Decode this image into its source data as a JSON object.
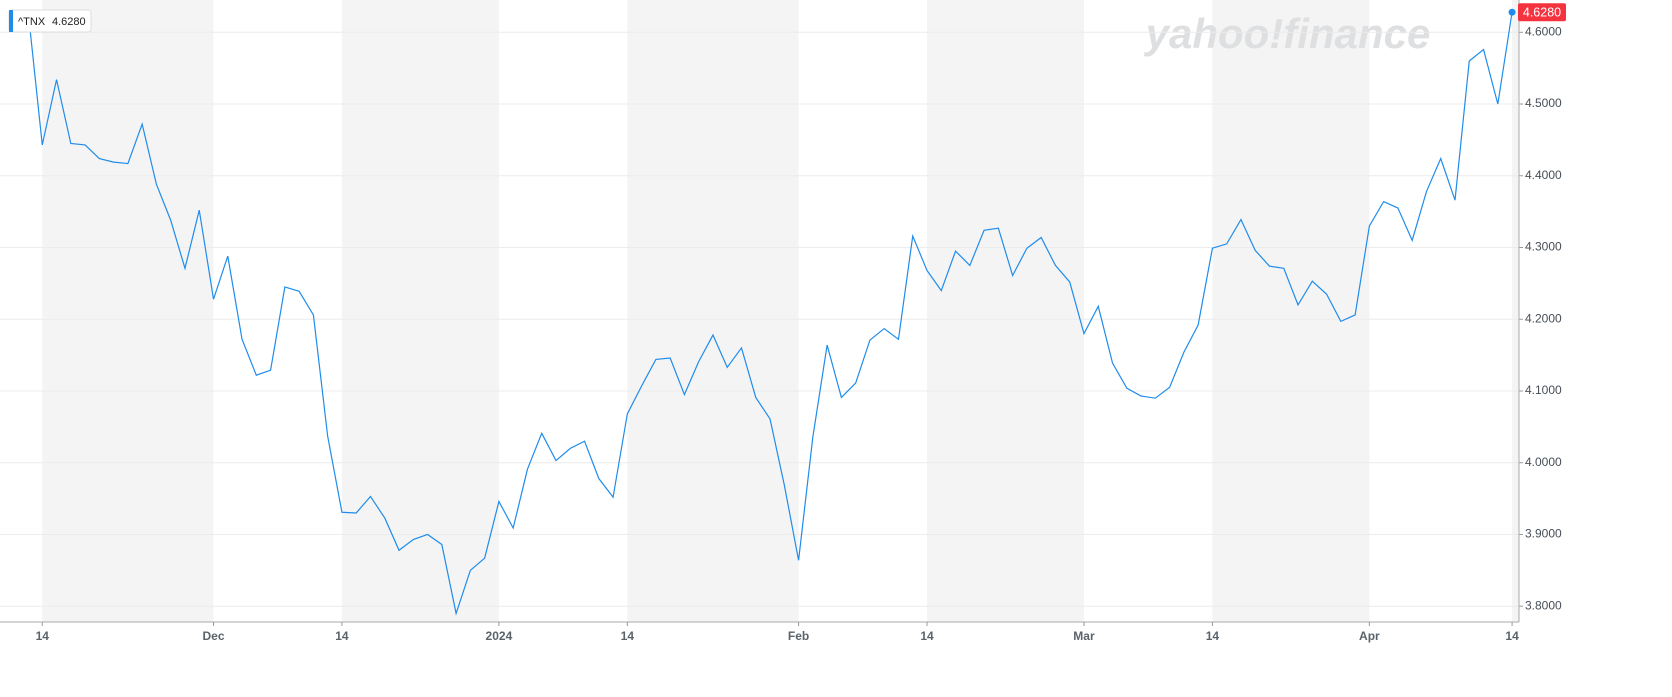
{
  "chart_data": {
    "type": "line",
    "watermark": "yahoo!finance",
    "categories": [
      null,
      "14",
      null,
      null,
      null,
      null,
      null,
      null,
      null,
      null,
      null,
      null,
      null,
      "Dec",
      null,
      null,
      null,
      null,
      null,
      null,
      null,
      null,
      "14",
      null,
      null,
      null,
      null,
      null,
      null,
      null,
      null,
      null,
      null,
      "2024",
      null,
      null,
      null,
      null,
      null,
      null,
      null,
      null,
      "14",
      null,
      null,
      null,
      null,
      null,
      null,
      null,
      null,
      null,
      null,
      null,
      "Feb",
      null,
      null,
      null,
      null,
      null,
      null,
      null,
      null,
      "14",
      null,
      null,
      null,
      null,
      null,
      null,
      null,
      null,
      null,
      null,
      "Mar",
      null,
      null,
      null,
      null,
      null,
      null,
      null,
      null,
      "14",
      null,
      null,
      null,
      null,
      null,
      null,
      null,
      null,
      null,
      null,
      "Apr",
      null,
      null,
      null,
      null,
      null,
      null,
      null,
      null,
      null,
      "14"
    ],
    "series": [
      {
        "name": "^TNX",
        "color": "#1f8ceb",
        "values": [
          4.631,
          4.443,
          4.534,
          4.445,
          4.443,
          4.424,
          4.419,
          4.417,
          4.472,
          4.388,
          4.338,
          4.271,
          4.352,
          4.228,
          4.288,
          4.172,
          4.122,
          4.129,
          4.245,
          4.239,
          4.206,
          4.037,
          3.931,
          3.93,
          3.953,
          3.923,
          3.878,
          3.893,
          3.9,
          3.886,
          3.79,
          3.85,
          3.867,
          3.946,
          3.909,
          3.991,
          4.041,
          4.003,
          4.02,
          4.03,
          3.978,
          3.952,
          4.068,
          4.107,
          4.144,
          4.146,
          4.095,
          4.141,
          4.178,
          4.133,
          4.16,
          4.091,
          4.061,
          3.969,
          3.864,
          4.036,
          4.164,
          4.091,
          4.111,
          4.171,
          4.187,
          4.172,
          4.316,
          4.268,
          4.24,
          4.295,
          4.275,
          4.324,
          4.327,
          4.261,
          4.299,
          4.314,
          4.275,
          4.252,
          4.18,
          4.218,
          4.139,
          4.104,
          4.093,
          4.09,
          4.105,
          4.154,
          4.192,
          4.299,
          4.305,
          4.339,
          4.296,
          4.274,
          4.271,
          4.22,
          4.253,
          4.235,
          4.197,
          4.206,
          4.33,
          4.364,
          4.355,
          4.31,
          4.378,
          4.424,
          4.366,
          4.56,
          4.576,
          4.5,
          4.628
        ]
      }
    ],
    "last_price": {
      "value": 4.628,
      "label": "4.6280",
      "color": "#f5333f"
    },
    "ylim": [
      3.778,
      4.645
    ],
    "yticks": [
      {
        "value": 3.8,
        "label": "3.8000"
      },
      {
        "value": 3.9,
        "label": "3.9000"
      },
      {
        "value": 4.0,
        "label": "4.0000"
      },
      {
        "value": 4.1,
        "label": "4.1000"
      },
      {
        "value": 4.2,
        "label": "4.2000"
      },
      {
        "value": 4.3,
        "label": "4.3000"
      },
      {
        "value": 4.4,
        "label": "4.4000"
      },
      {
        "value": 4.5,
        "label": "4.5000"
      },
      {
        "value": 4.6,
        "label": "4.6000"
      }
    ],
    "grid": true
  }
}
